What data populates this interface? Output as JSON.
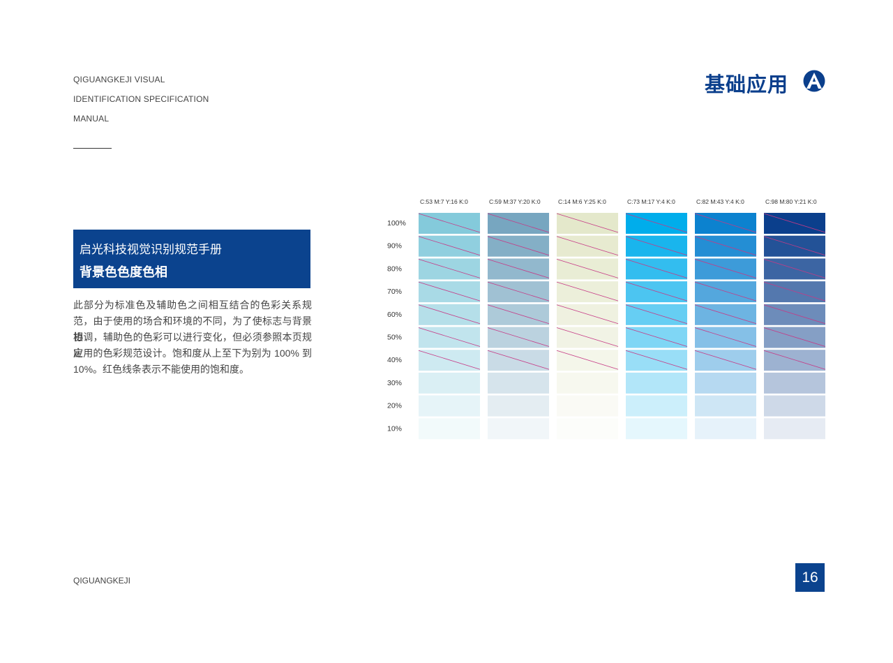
{
  "header": {
    "lines": [
      "QIGUANGKEJI VISUAL",
      "IDENTIFICATION SPECIFICATION",
      "MANUAL"
    ],
    "title": "基础应用"
  },
  "section": {
    "title": "启光科技视觉识别规范手册",
    "subtitle": "背景色色度色相",
    "paragraph": [
      "此部分为标准色及辅助色之间相互结合的色彩关系规",
      "范，由于使用的场合和环境的不同，为了使标志与背景相",
      "协调，辅助色的色彩可以进行变化，但必须参照本页规定",
      "应用的色彩规范设计。饱和度从上至下为别为  100%  到",
      "10%。红色线条表示不能使用的饱和度。"
    ]
  },
  "swatches": {
    "columns": [
      {
        "label": "C:53  M:7  Y:16  K:0",
        "color": "#84cadb"
      },
      {
        "label": "C:59  M:37  Y:20  K:0",
        "color": "#77a6c0"
      },
      {
        "label": "C:14  M:6  Y:25  K:0",
        "color": "#e4e8cb"
      },
      {
        "label": "C:73  M:17  Y:4  K:0",
        "color": "#00adeb"
      },
      {
        "label": "C:82  M:43  Y:4  K:0",
        "color": "#0c82cf"
      },
      {
        "label": "C:98  M:80  Y:21  K:0",
        "color": "#0b3f8c"
      }
    ],
    "rows": [
      "100%",
      "90%",
      "80%",
      "70%",
      "60%",
      "50%",
      "40%",
      "30%",
      "20%",
      "10%"
    ],
    "line_color": "#c63a86"
  },
  "footer": {
    "brand": "QIGUANGKEJI",
    "page": "16"
  }
}
